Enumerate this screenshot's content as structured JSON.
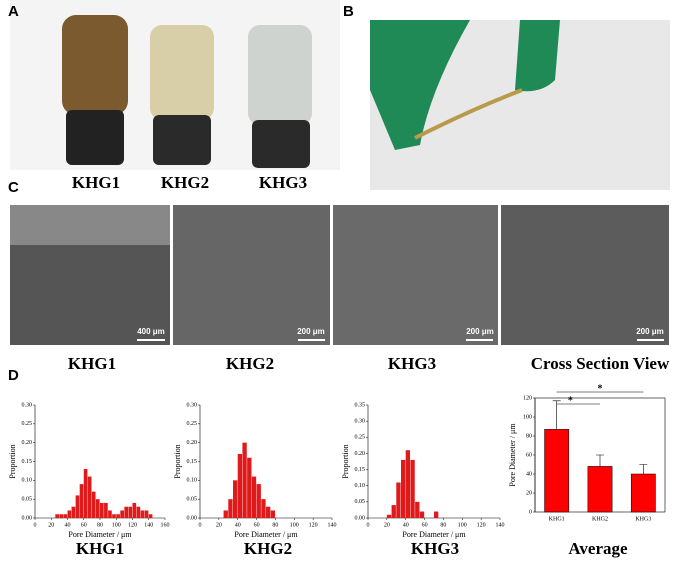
{
  "panel_labels": [
    "A",
    "B",
    "C",
    "D"
  ],
  "photo_labels": [
    "KHG1",
    "KHG2",
    "KHG3"
  ],
  "scale_bars": [
    "400 μm",
    "200 μm",
    "200 μm",
    "200 μm"
  ],
  "sem_labels": [
    "KHG1",
    "KHG2",
    "KHG3",
    "Cross Section View"
  ],
  "chart_captions": [
    "KHG1",
    "KHG2",
    "KHG3",
    "Average"
  ],
  "chart_data": [
    {
      "type": "histogram",
      "x_label": "Pore Diameter / μm",
      "y_label": "Proportion",
      "color": "#e0191b",
      "bins": [
        25,
        30,
        35,
        40,
        45,
        50,
        55,
        60,
        65,
        70,
        75,
        80,
        85,
        90,
        95,
        100,
        105,
        110,
        115,
        120,
        125,
        130,
        135,
        140,
        145
      ],
      "values": [
        0.01,
        0.01,
        0.01,
        0.02,
        0.03,
        0.06,
        0.09,
        0.13,
        0.11,
        0.07,
        0.05,
        0.04,
        0.04,
        0.02,
        0.01,
        0.01,
        0.02,
        0.03,
        0.03,
        0.04,
        0.03,
        0.02,
        0.02,
        0.01
      ],
      "xlim": [
        0,
        160
      ],
      "xticks": [
        0,
        20,
        40,
        60,
        80,
        100,
        120,
        140,
        160
      ],
      "ylim": [
        0,
        0.3
      ],
      "yticks": [
        {
          "value": 0,
          "label": "0.00"
        },
        0.05,
        {
          "value": 0.1,
          "label": "0.10"
        },
        0.15,
        {
          "value": 0.2,
          "label": "0.20"
        },
        0.25,
        {
          "value": 0.3,
          "label": "0.30"
        }
      ]
    },
    {
      "type": "histogram",
      "x_label": "Pore Diameter / μm",
      "y_label": "Proportion",
      "color": "#e0191b",
      "bins": [
        25,
        30,
        35,
        40,
        45,
        50,
        55,
        60,
        65,
        70,
        75,
        80
      ],
      "values": [
        0.02,
        0.05,
        0.1,
        0.17,
        0.2,
        0.16,
        0.11,
        0.09,
        0.05,
        0.03,
        0.02
      ],
      "xlim": [
        0,
        140
      ],
      "xticks": [
        0,
        20,
        40,
        60,
        80,
        100,
        120,
        140
      ],
      "ylim": [
        0,
        0.3
      ],
      "yticks": [
        {
          "value": 0,
          "label": "0.00"
        },
        0.05,
        {
          "value": 0.1,
          "label": "0.10"
        },
        0.15,
        {
          "value": 0.2,
          "label": "0.20"
        },
        0.25,
        {
          "value": 0.3,
          "label": "0.30"
        }
      ]
    },
    {
      "type": "histogram",
      "x_label": "Pore Diameter / μm",
      "y_label": "Proportion",
      "color": "#e0191b",
      "bins": [
        20,
        25,
        30,
        35,
        40,
        45,
        50,
        55,
        60,
        65,
        70,
        75
      ],
      "values": [
        0.01,
        0.04,
        0.11,
        0.18,
        0.21,
        0.18,
        0.05,
        0.02,
        0,
        0,
        0.02
      ],
      "xlim": [
        0,
        140
      ],
      "xticks": [
        0,
        20,
        40,
        60,
        80,
        100,
        120,
        140
      ],
      "ylim": [
        0,
        0.35
      ],
      "yticks": [
        {
          "value": 0,
          "label": "0.00"
        },
        0.05,
        {
          "value": 0.1,
          "label": "0.10"
        },
        0.15,
        {
          "value": 0.2,
          "label": "0.20"
        },
        0.25,
        {
          "value": 0.3,
          "label": "0.30"
        },
        0.35
      ]
    },
    {
      "type": "bar",
      "y_label": "Pore Diameter / μm",
      "color": "#ff0000",
      "categories": [
        "KHG1",
        "KHG2",
        "KHG3"
      ],
      "values": [
        87,
        48,
        40
      ],
      "errors": [
        30,
        12,
        10
      ],
      "ylim": [
        0,
        120
      ],
      "yticks": [
        0,
        20,
        40,
        60,
        80,
        100,
        120
      ],
      "annotations": [
        "*",
        "*"
      ]
    }
  ]
}
